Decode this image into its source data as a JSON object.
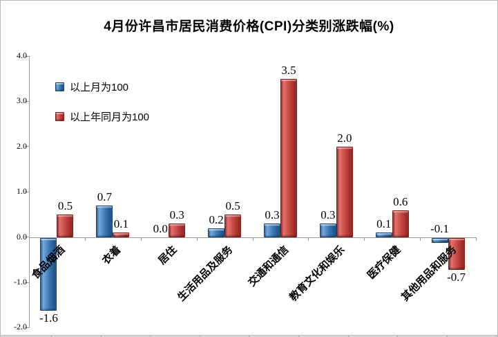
{
  "chart_data": {
    "type": "bar",
    "title": "4月份许昌市居民消费价格(CPI)分类别涨跌幅(%)",
    "categories": [
      "食品烟酒",
      "衣着",
      "居住",
      "生活用品及服务",
      "交通和通信",
      "教育文化和娱乐",
      "医疗保健",
      "其他用品和服务"
    ],
    "series": [
      {
        "key": "mom",
        "name": "以上月为100",
        "color": "#3a78b6",
        "values": [
          -1.6,
          0.7,
          0.0,
          0.2,
          0.3,
          0.3,
          0.1,
          -0.1
        ],
        "labels": [
          "-1.6",
          "0.7",
          "0.0",
          "0.2",
          "0.3",
          "0.3",
          "0.1",
          "-0.1"
        ],
        "label_pos": [
          "below",
          "above",
          "above",
          "above",
          "above",
          "above",
          "above",
          "above"
        ]
      },
      {
        "key": "yoy",
        "name": "以上年同月为100",
        "color": "#c64540",
        "values": [
          0.5,
          0.1,
          0.3,
          0.5,
          3.5,
          2.0,
          0.6,
          -0.7
        ],
        "labels": [
          "0.5",
          "0.1",
          "0.3",
          "0.5",
          "3.5",
          "2.0",
          "0.6",
          "-0.7"
        ],
        "label_pos": [
          "above",
          "above",
          "above",
          "above",
          "above",
          "above",
          "above",
          "below"
        ]
      }
    ],
    "y_axis": {
      "min": -2.0,
      "max": 4.0,
      "step": 1.0,
      "tick_labels": [
        "4.0",
        "3.0",
        "2.0",
        "1.0",
        "0.0",
        "-1.0",
        "-2.0"
      ]
    },
    "xlabel": "",
    "ylabel": "",
    "legend_position": "top-left-inside",
    "grid": false
  }
}
